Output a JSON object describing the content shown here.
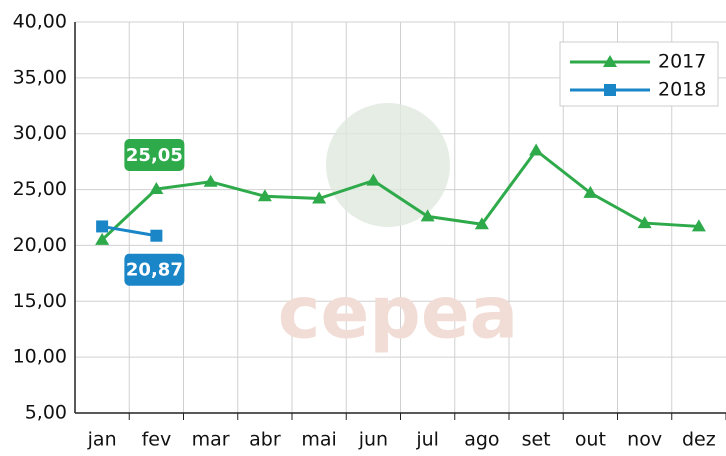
{
  "chart_data": {
    "type": "line",
    "watermark": "cepea",
    "categories": [
      "jan",
      "fev",
      "mar",
      "abr",
      "mai",
      "jun",
      "jul",
      "ago",
      "set",
      "out",
      "nov",
      "dez"
    ],
    "series": [
      {
        "name": "2017",
        "color": "#2eaa4a",
        "marker": "triangle",
        "values": [
          20.5,
          25.05,
          25.7,
          24.4,
          24.2,
          25.8,
          22.6,
          21.9,
          28.5,
          24.7,
          22.0,
          21.7
        ],
        "value_labels": [
          null,
          "25,05",
          null,
          null,
          null,
          null,
          null,
          null,
          null,
          null,
          null,
          null
        ]
      },
      {
        "name": "2018",
        "color": "#1a86c8",
        "marker": "square",
        "values": [
          21.7,
          20.87,
          null,
          null,
          null,
          null,
          null,
          null,
          null,
          null,
          null,
          null
        ],
        "value_labels": [
          null,
          "20,87",
          null,
          null,
          null,
          null,
          null,
          null,
          null,
          null,
          null,
          null
        ]
      }
    ],
    "ylim": [
      5,
      40
    ],
    "yticks": [
      {
        "value": 5,
        "label": "5,00"
      },
      {
        "value": 10,
        "label": "10,00"
      },
      {
        "value": 15,
        "label": "15,00"
      },
      {
        "value": 20,
        "label": "20,00"
      },
      {
        "value": 25,
        "label": "25,00"
      },
      {
        "value": 30,
        "label": "30,00"
      },
      {
        "value": 35,
        "label": "35,00"
      },
      {
        "value": 40,
        "label": "40,00"
      }
    ],
    "grid": true,
    "legend": "top-right"
  }
}
